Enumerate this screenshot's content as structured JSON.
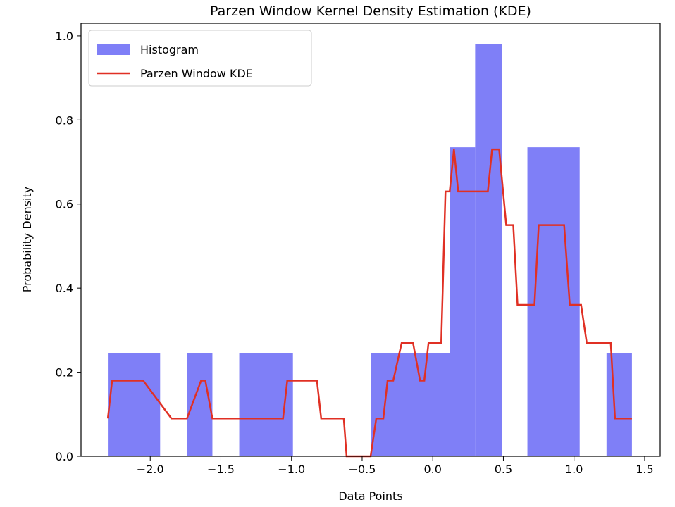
{
  "chart_data": {
    "type": "bar",
    "title": "Parzen Window Kernel Density Estimation (KDE)",
    "xlabel": "Data Points",
    "ylabel": "Probability Density",
    "xlim": [
      -2.49,
      1.61
    ],
    "ylim": [
      0.0,
      1.03
    ],
    "x_ticks": [
      -2.0,
      -1.5,
      -1.0,
      -0.5,
      0.0,
      0.5,
      1.0,
      1.5
    ],
    "x_tick_labels": [
      "−2.0",
      "−1.5",
      "−1.0",
      "−0.5",
      "0.0",
      "0.5",
      "1.0",
      "1.5"
    ],
    "y_ticks": [
      0.0,
      0.2,
      0.4,
      0.6,
      0.8,
      1.0
    ],
    "y_tick_labels": [
      "0.0",
      "0.2",
      "0.4",
      "0.6",
      "0.8",
      "1.0"
    ],
    "grid": false,
    "legend_placement": "top-left",
    "histogram": {
      "name": "Histogram",
      "color": "#7f7ff7",
      "bins": [
        {
          "x0": -2.3,
          "x1": -1.93,
          "value": 0.245
        },
        {
          "x0": -1.93,
          "x1": -1.74,
          "value": 0.0
        },
        {
          "x0": -1.74,
          "x1": -1.56,
          "value": 0.245
        },
        {
          "x0": -1.56,
          "x1": -1.37,
          "value": 0.0
        },
        {
          "x0": -1.37,
          "x1": -0.99,
          "value": 0.245
        },
        {
          "x0": -0.99,
          "x1": -0.44,
          "value": 0.0
        },
        {
          "x0": -0.44,
          "x1": 0.12,
          "value": 0.245
        },
        {
          "x0": 0.12,
          "x1": 0.3,
          "value": 0.735
        },
        {
          "x0": 0.3,
          "x1": 0.49,
          "value": 0.98
        },
        {
          "x0": 0.49,
          "x1": 0.67,
          "value": 0.0
        },
        {
          "x0": 0.67,
          "x1": 1.04,
          "value": 0.735
        },
        {
          "x0": 1.04,
          "x1": 1.23,
          "value": 0.0
        },
        {
          "x0": 1.23,
          "x1": 1.41,
          "value": 0.245
        }
      ]
    },
    "kde": {
      "name": "Parzen Window KDE",
      "color": "#e03024",
      "x": [
        -2.3,
        -2.27,
        -2.09,
        -2.05,
        -1.85,
        -1.82,
        -1.79,
        -1.74,
        -1.64,
        -1.61,
        -1.56,
        -1.06,
        -1.03,
        -0.82,
        -0.79,
        -0.63,
        -0.61,
        -0.44,
        -0.4,
        -0.35,
        -0.32,
        -0.28,
        -0.22,
        -0.19,
        -0.14,
        -0.09,
        -0.06,
        -0.03,
        0.06,
        0.09,
        0.12,
        0.15,
        0.18,
        0.21,
        0.39,
        0.42,
        0.47,
        0.52,
        0.54,
        0.57,
        0.6,
        0.65,
        0.72,
        0.75,
        0.83,
        0.9,
        0.93,
        0.97,
        0.99,
        1.05,
        1.09,
        1.21,
        1.26,
        1.29,
        1.41
      ],
      "y": [
        0.09,
        0.18,
        0.18,
        0.18,
        0.09,
        0.09,
        0.09,
        0.09,
        0.18,
        0.18,
        0.09,
        0.09,
        0.18,
        0.18,
        0.09,
        0.09,
        0.0,
        0.0,
        0.09,
        0.09,
        0.18,
        0.18,
        0.27,
        0.27,
        0.27,
        0.18,
        0.18,
        0.27,
        0.27,
        0.63,
        0.63,
        0.73,
        0.63,
        0.63,
        0.63,
        0.73,
        0.73,
        0.55,
        0.55,
        0.55,
        0.36,
        0.36,
        0.36,
        0.55,
        0.55,
        0.55,
        0.55,
        0.36,
        0.36,
        0.36,
        0.27,
        0.27,
        0.27,
        0.09,
        0.09
      ]
    }
  }
}
